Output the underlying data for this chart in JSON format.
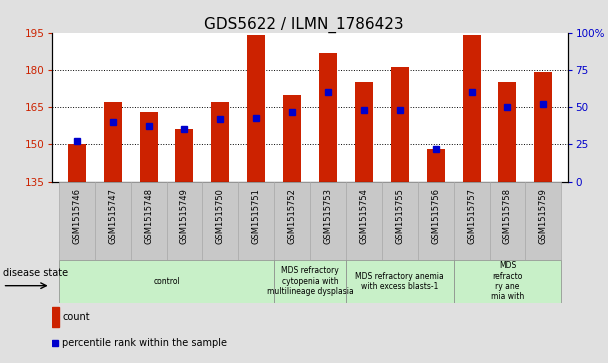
{
  "title": "GDS5622 / ILMN_1786423",
  "samples": [
    "GSM1515746",
    "GSM1515747",
    "GSM1515748",
    "GSM1515749",
    "GSM1515750",
    "GSM1515751",
    "GSM1515752",
    "GSM1515753",
    "GSM1515754",
    "GSM1515755",
    "GSM1515756",
    "GSM1515757",
    "GSM1515758",
    "GSM1515759"
  ],
  "counts": [
    150,
    167,
    163,
    156,
    167,
    194,
    170,
    187,
    175,
    181,
    148,
    194,
    175,
    179
  ],
  "percentile_ranks": [
    27,
    40,
    37,
    35,
    42,
    43,
    47,
    60,
    48,
    48,
    22,
    60,
    50,
    52
  ],
  "ylim_left": [
    135,
    195
  ],
  "ylim_right": [
    0,
    100
  ],
  "left_ticks": [
    135,
    150,
    165,
    180,
    195
  ],
  "right_ticks": [
    0,
    25,
    50,
    75,
    100
  ],
  "bar_color": "#cc2200",
  "marker_color": "#0000cc",
  "bar_width": 0.5,
  "group_boundaries": [
    0,
    6,
    8,
    11,
    14
  ],
  "group_labels": [
    "control",
    "MDS refractory\ncytopenia with\nmultilineage dysplasia",
    "MDS refractory anemia\nwith excess blasts-1",
    "MDS\nrefracto\nry ane\nmia with"
  ],
  "disease_label": "disease state",
  "legend_count_label": "count",
  "legend_percentile_label": "percentile rank within the sample",
  "background_color": "#e0e0e0",
  "plot_bg_color": "#ffffff",
  "xtick_bg_color": "#c8c8c8",
  "disease_bg_color": "#c8f0c8",
  "disease_border_color": "#888888",
  "title_fontsize": 11,
  "tick_fontsize": 7.5,
  "xtick_fontsize": 6,
  "disease_fontsize": 5.5,
  "legend_fontsize": 7
}
